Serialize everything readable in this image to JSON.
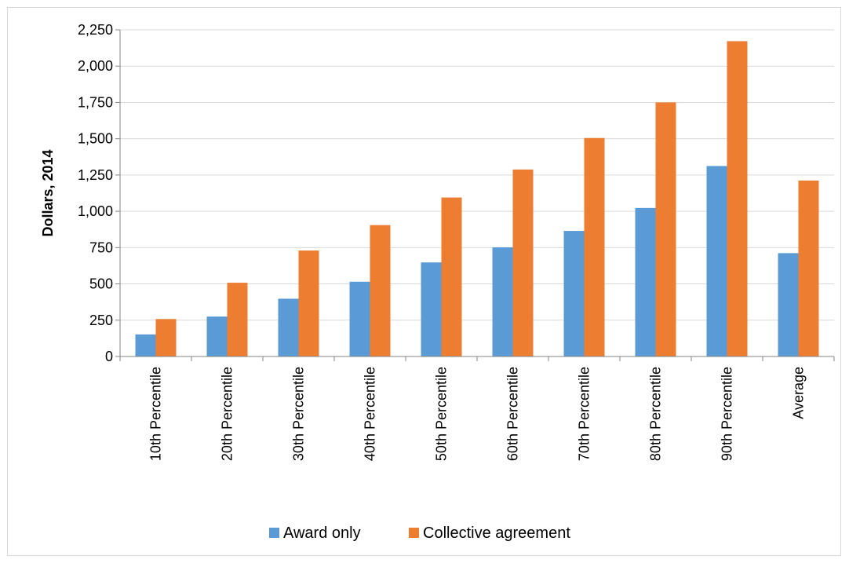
{
  "chart_data": {
    "type": "bar",
    "title": "",
    "xlabel": "",
    "ylabel": "Dollars, 2014",
    "ylim": [
      0,
      2250
    ],
    "yticks": [
      "0",
      "250",
      "500",
      "750",
      "1,000",
      "1,250",
      "1,500",
      "1,750",
      "2,000",
      "2,250"
    ],
    "ytick_values": [
      0,
      250,
      500,
      750,
      1000,
      1250,
      1500,
      1750,
      2000,
      2250
    ],
    "categories": [
      "10th Percentile",
      "20th Percentile",
      "30th Percentile",
      "40th Percentile",
      "50th Percentile",
      "60th Percentile",
      "70th Percentile",
      "80th Percentile",
      "90th Percentile",
      "Average"
    ],
    "series": [
      {
        "name": "Award only",
        "color": "#5b9bd5",
        "values": [
          152,
          275,
          398,
          515,
          648,
          752,
          865,
          1023,
          1312,
          712
        ]
      },
      {
        "name": "Collective agreement",
        "color": "#ed7d31",
        "values": [
          258,
          508,
          730,
          905,
          1095,
          1288,
          1505,
          1750,
          2172,
          1212
        ]
      }
    ],
    "grid": true,
    "legend_position": "bottom"
  }
}
